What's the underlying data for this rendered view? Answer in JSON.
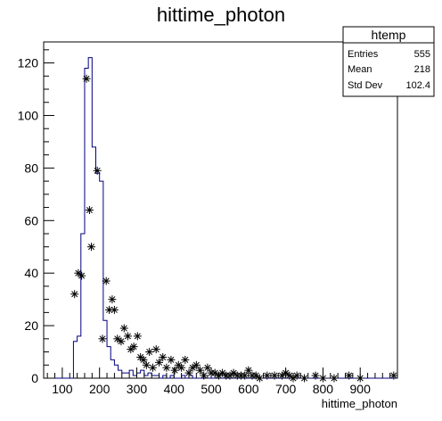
{
  "chart_data": {
    "type": "histogram",
    "title": "hittime_photon",
    "xlabel": "hittime_photon",
    "ylabel": "",
    "xlim": [
      50,
      1000
    ],
    "ylim": [
      0,
      128
    ],
    "x_ticks": [
      100,
      200,
      300,
      400,
      500,
      600,
      700,
      800,
      900
    ],
    "y_ticks": [
      0,
      20,
      40,
      60,
      80,
      100,
      120
    ],
    "grid": false,
    "legend": "none",
    "stats_box": {
      "title": "htemp",
      "rows": [
        {
          "label": "Entries",
          "value": "555"
        },
        {
          "label": "Mean",
          "value": "218"
        },
        {
          "label": "Std Dev",
          "value": "102.4"
        }
      ]
    },
    "series": [
      {
        "style": "step",
        "color": "#000080",
        "bin_edges": [
          130,
          140,
          150,
          160,
          170,
          180,
          190,
          200,
          210,
          220,
          230,
          240,
          250,
          260,
          270,
          280,
          290,
          300,
          310,
          320,
          330,
          340,
          350,
          360,
          370,
          380,
          390,
          400,
          410,
          420,
          430,
          440,
          450,
          460,
          470,
          480,
          490,
          500,
          510,
          520
        ],
        "values": [
          14,
          16,
          55,
          118,
          122,
          88,
          78,
          75,
          22,
          12,
          7,
          5,
          3,
          2,
          2,
          3,
          1,
          2,
          3,
          1,
          2,
          1,
          1,
          0,
          1,
          0,
          1,
          0,
          0,
          1,
          0,
          1,
          0,
          0,
          0,
          1,
          0,
          0,
          1
        ]
      },
      {
        "style": "markers",
        "marker": "asterisk",
        "color": "#000000",
        "x": [
          133,
          143,
          152,
          165,
          173,
          178,
          194,
          208,
          218,
          226,
          234,
          240,
          248,
          258,
          266,
          276,
          284,
          292,
          302,
          310,
          318,
          326,
          334,
          343,
          352,
          360,
          370,
          380,
          392,
          402,
          412,
          420,
          430,
          440,
          450,
          460,
          470,
          480,
          490,
          500,
          510,
          520,
          530,
          540,
          550,
          560,
          570,
          580,
          590,
          600,
          610,
          620,
          630,
          650,
          670,
          690,
          700,
          710,
          720,
          730,
          750,
          780,
          800,
          830,
          870,
          900,
          990
        ],
        "y": [
          32,
          40,
          39,
          114,
          64,
          50,
          79,
          15,
          37,
          26,
          30,
          26,
          15,
          14,
          19,
          16,
          11,
          12,
          16,
          8,
          7,
          5,
          10,
          4,
          11,
          6,
          8,
          4,
          7,
          3,
          5,
          4,
          7,
          2,
          4,
          5,
          3,
          1,
          4,
          2,
          2,
          1,
          2,
          1,
          1,
          2,
          1,
          1,
          1,
          3,
          1,
          1,
          0,
          1,
          1,
          1,
          2,
          1,
          0,
          1,
          0,
          1,
          0,
          0,
          1,
          0,
          1
        ]
      }
    ]
  }
}
